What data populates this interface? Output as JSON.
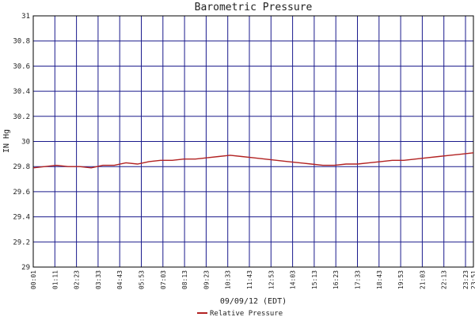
{
  "chart_data": {
    "type": "line",
    "title": "Barometric Pressure",
    "xlabel": "09/09/12 (EDT)",
    "ylabel": "IN Hg",
    "ylim": [
      29,
      31
    ],
    "yticks": [
      "29",
      "29.2",
      "29.4",
      "29.6",
      "29.8",
      "30",
      "30.2",
      "30.4",
      "30.6",
      "30.8",
      "31"
    ],
    "xticks": [
      "00:01",
      "01:11",
      "02:23",
      "03:33",
      "04:43",
      "05:53",
      "07:03",
      "08:13",
      "09:23",
      "10:33",
      "11:43",
      "12:53",
      "14:03",
      "15:13",
      "16:23",
      "17:33",
      "18:43",
      "19:53",
      "21:03",
      "22:13",
      "23:23",
      "23:51"
    ],
    "grid": true,
    "legend_position": "bottom-center",
    "colors": {
      "grid": "#1a1a8c",
      "series": "#b22222",
      "axis": "#000000"
    },
    "series": [
      {
        "name": "Relative Pressure",
        "values": [
          29.79,
          29.8,
          29.81,
          29.8,
          29.8,
          29.79,
          29.81,
          29.81,
          29.83,
          29.82,
          29.84,
          29.85,
          29.85,
          29.86,
          29.86,
          29.87,
          29.88,
          29.89,
          29.88,
          29.87,
          29.86,
          29.85,
          29.84,
          29.83,
          29.82,
          29.81,
          29.81,
          29.82,
          29.82,
          29.83,
          29.84,
          29.85,
          29.85,
          29.86,
          29.87,
          29.88,
          29.89,
          29.9,
          29.91
        ]
      }
    ]
  }
}
